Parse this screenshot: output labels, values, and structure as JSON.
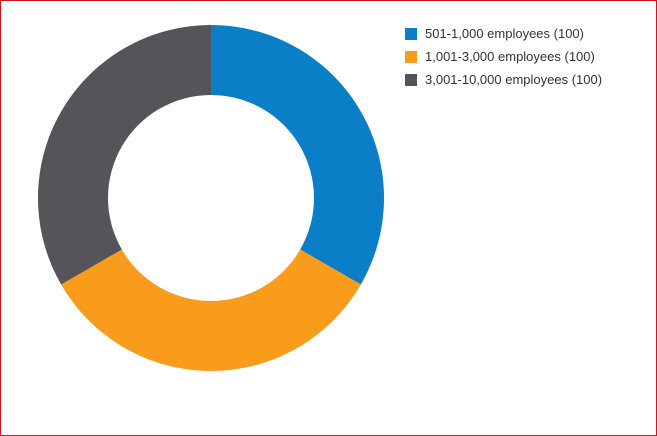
{
  "chart_data": {
    "type": "pie",
    "style": "donut",
    "categories": [
      "501-1,000 employees (100)",
      "1,001-3,000 employees (100)",
      "3,001-10,000 employees (100)"
    ],
    "values": [
      100,
      100,
      100
    ],
    "colors": [
      "#0a7ec6",
      "#f99c1c",
      "#555559"
    ],
    "legend_position": "top-right"
  },
  "colors": {
    "border": "#d0131a",
    "background": "#ffffff"
  }
}
